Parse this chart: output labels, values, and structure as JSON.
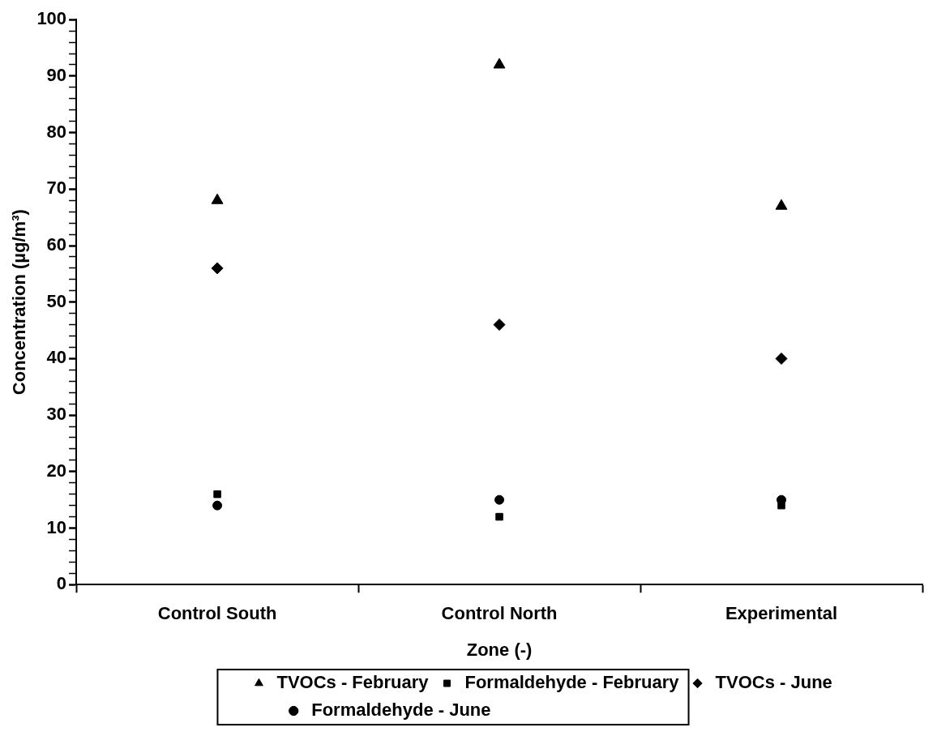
{
  "chart_data": {
    "type": "scatter",
    "xlabel": "Zone (-)",
    "ylabel": "Concentration (µg/m³)",
    "categories": [
      "Control South",
      "Control North",
      "Experimental"
    ],
    "series": [
      {
        "name": "TVOCs - February",
        "color": "#000000",
        "marker": "triangle",
        "values": [
          68,
          92,
          67
        ]
      },
      {
        "name": "Formaldehyde - February",
        "color": "#000000",
        "marker": "square",
        "values": [
          16,
          12,
          14
        ]
      },
      {
        "name": "TVOCs - June",
        "color": "#000000",
        "marker": "diamond",
        "values": [
          56,
          46,
          40
        ]
      },
      {
        "name": "Formaldehyde - June",
        "color": "#000000",
        "marker": "circle",
        "values": [
          14,
          15,
          15
        ]
      }
    ],
    "ylim": [
      0,
      100
    ],
    "yticks": [
      0,
      {
        "value": 2,
        "label": null
      },
      {
        "value": 4,
        "label": null
      },
      {
        "value": 6,
        "label": null
      },
      {
        "value": 8,
        "label": null
      },
      10,
      {
        "value": 12,
        "label": null
      },
      {
        "value": 14,
        "label": null
      },
      {
        "value": 16,
        "label": null
      },
      {
        "value": 18,
        "label": null
      },
      20,
      {
        "value": 22,
        "label": null
      },
      {
        "value": 24,
        "label": null
      },
      {
        "value": 26,
        "label": null
      },
      {
        "value": 28,
        "label": null
      },
      30,
      {
        "value": 32,
        "label": null
      },
      {
        "value": 34,
        "label": null
      },
      {
        "value": 36,
        "label": null
      },
      {
        "value": 38,
        "label": null
      },
      40,
      {
        "value": 42,
        "label": null
      },
      {
        "value": 44,
        "label": null
      },
      {
        "value": 46,
        "label": null
      },
      {
        "value": 48,
        "label": null
      },
      50,
      {
        "value": 52,
        "label": null
      },
      {
        "value": 54,
        "label": null
      },
      {
        "value": 56,
        "label": null
      },
      {
        "value": 58,
        "label": null
      },
      60,
      {
        "value": 62,
        "label": null
      },
      {
        "value": 64,
        "label": null
      },
      {
        "value": 66,
        "label": null
      },
      {
        "value": 68,
        "label": null
      },
      70,
      {
        "value": 72,
        "label": null
      },
      {
        "value": 74,
        "label": null
      },
      {
        "value": 76,
        "label": null
      },
      {
        "value": 78,
        "label": null
      },
      80,
      {
        "value": 82,
        "label": null
      },
      {
        "value": 84,
        "label": null
      },
      {
        "value": 86,
        "label": null
      },
      {
        "value": 88,
        "label": null
      },
      90,
      {
        "value": 92,
        "label": null
      },
      {
        "value": 94,
        "label": null
      },
      {
        "value": 96,
        "label": null
      },
      {
        "value": 98,
        "label": null
      },
      100
    ],
    "grid": false,
    "legend": "bottom"
  }
}
